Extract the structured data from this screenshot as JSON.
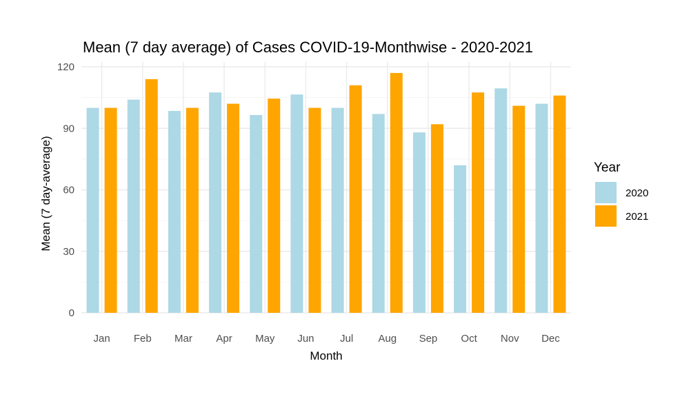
{
  "chart_data": {
    "type": "bar",
    "title": "Mean (7 day average) of Cases COVID-19-Monthwise - 2020-2021",
    "xlabel": "Month",
    "ylabel": "Mean (7 day-average)",
    "categories": [
      "Jan",
      "Feb",
      "Mar",
      "Apr",
      "May",
      "Jun",
      "Jul",
      "Aug",
      "Sep",
      "Oct",
      "Nov",
      "Dec"
    ],
    "series": [
      {
        "name": "2020",
        "color": "#ADD8E6",
        "values": [
          100,
          104,
          98.5,
          107.5,
          96.5,
          106.5,
          100,
          97,
          88,
          72,
          109.5,
          102
        ]
      },
      {
        "name": "2021",
        "color": "#FFA500",
        "values": [
          100,
          114,
          100,
          102,
          104.5,
          100,
          111,
          117,
          92,
          107.5,
          101,
          106
        ]
      }
    ],
    "ylim": [
      0,
      120
    ],
    "yticks": [
      0,
      30,
      60,
      90,
      120
    ],
    "grid": true,
    "legend": {
      "title": "Year",
      "position": "right"
    }
  }
}
